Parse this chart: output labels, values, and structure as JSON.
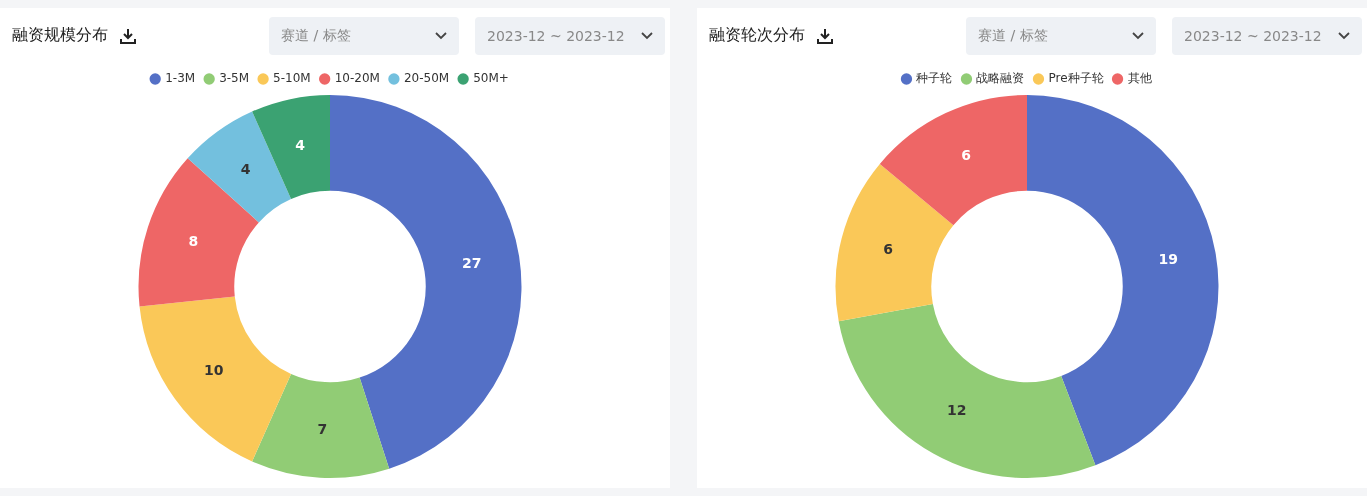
{
  "chart_data": [
    {
      "type": "donut",
      "title": "融资规模分布",
      "annotations": [
        "赛道 / 标签",
        "2023-12 ~ 2023-12"
      ],
      "categories": [
        "1-3M",
        "3-5M",
        "5-10M",
        "10-20M",
        "20-50M",
        "50M+"
      ],
      "values": [
        27,
        7,
        10,
        8,
        4,
        4
      ],
      "colors": [
        "#5470c6",
        "#91cc75",
        "#fac858",
        "#ee6666",
        "#73c0de",
        "#3ba272"
      ],
      "data_labels": true,
      "legend": "top"
    },
    {
      "type": "donut",
      "title": "融资轮次分布",
      "annotations": [
        "赛道 / 标签",
        "2023-12 ~ 2023-12"
      ],
      "categories": [
        "种子轮",
        "战略融资",
        "Pre种子轮",
        "其他"
      ],
      "values": [
        19,
        12,
        6,
        6
      ],
      "colors": [
        "#5470c6",
        "#91cc75",
        "#fac858",
        "#ee6666"
      ],
      "data_labels": true,
      "legend": "top"
    }
  ]
}
